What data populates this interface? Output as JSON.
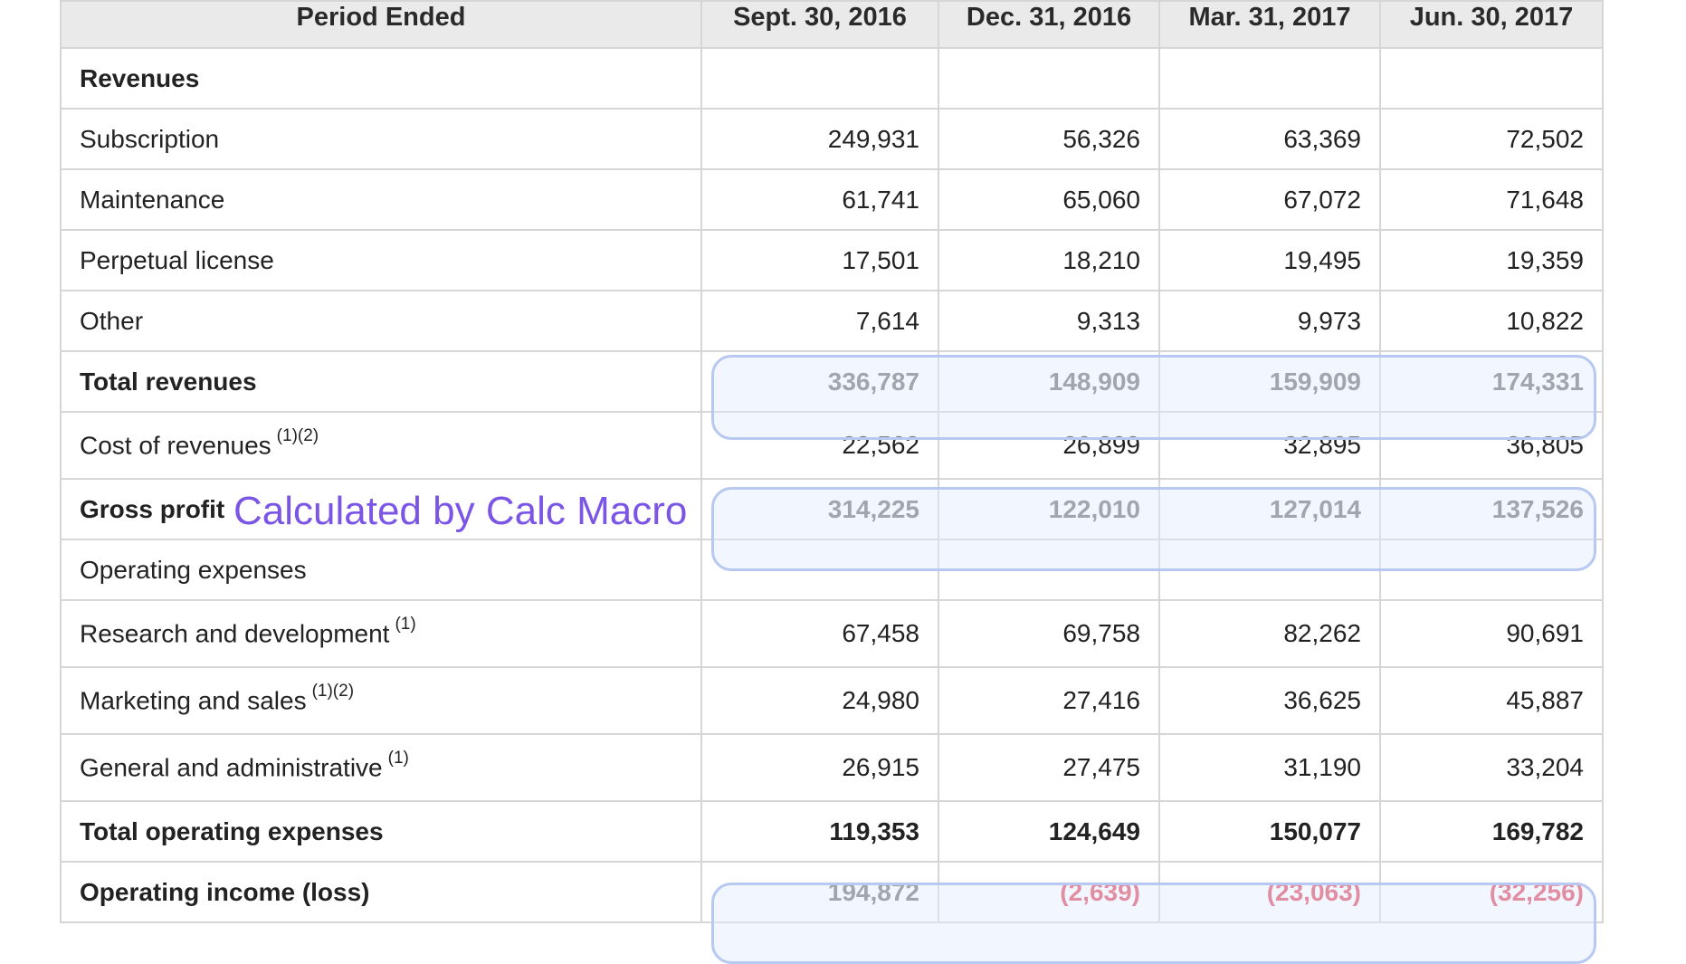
{
  "header": {
    "period_label": "Period Ended",
    "periods": [
      "Sept. 30, 2016",
      "Dec. 31, 2016",
      "Mar. 31, 2017",
      "Jun. 30, 2017"
    ]
  },
  "rows": {
    "revenues": {
      "label": "Revenues"
    },
    "subscription": {
      "label": "Subscription",
      "values": [
        "249,931",
        "56,326",
        "63,369",
        "72,502"
      ]
    },
    "maintenance": {
      "label": "Maintenance",
      "values": [
        "61,741",
        "65,060",
        "67,072",
        "71,648"
      ]
    },
    "perpetual": {
      "label": "Perpetual license",
      "values": [
        "17,501",
        "18,210",
        "19,495",
        "19,359"
      ]
    },
    "other": {
      "label": "Other",
      "values": [
        "7,614",
        "9,313",
        "9,973",
        "10,822"
      ]
    },
    "total_revenues": {
      "label": "Total revenues",
      "values": [
        "336,787",
        "148,909",
        "159,909",
        "174,331"
      ]
    },
    "cost_of_revenues": {
      "label": "Cost of revenues",
      "sup": "(1)(2)",
      "values": [
        "22,562",
        "26,899",
        "32,895",
        "36,805"
      ]
    },
    "gross_profit": {
      "label": "Gross profit",
      "values": [
        "314,225",
        "122,010",
        "127,014",
        "137,526"
      ]
    },
    "operating_expenses": {
      "label": "Operating expenses"
    },
    "research": {
      "label": "Research and development",
      "sup": "(1)",
      "values": [
        "67,458",
        "69,758",
        "82,262",
        "90,691"
      ]
    },
    "marketing": {
      "label": "Marketing and sales",
      "sup": "(1)(2)",
      "values": [
        "24,980",
        "27,416",
        "36,625",
        "45,887"
      ]
    },
    "general": {
      "label": "General and administrative",
      "sup": "(1)",
      "values": [
        "26,915",
        "27,475",
        "31,190",
        "33,204"
      ]
    },
    "total_opex": {
      "label": "Total operating expenses",
      "values": [
        "119,353",
        "124,649",
        "150,077",
        "169,782"
      ]
    },
    "operating_income": {
      "label": "Operating income (loss)",
      "values": [
        "194,872",
        "(2,639)",
        "(23,063)",
        "(32,256)"
      ]
    }
  },
  "annotation": {
    "text": "Calculated by Calc Macro"
  },
  "colors": {
    "negative": "#e0435a",
    "annotation": "#7b56e6",
    "highlight_border": "#b7c9f0",
    "header_bg": "#eaeaea"
  }
}
